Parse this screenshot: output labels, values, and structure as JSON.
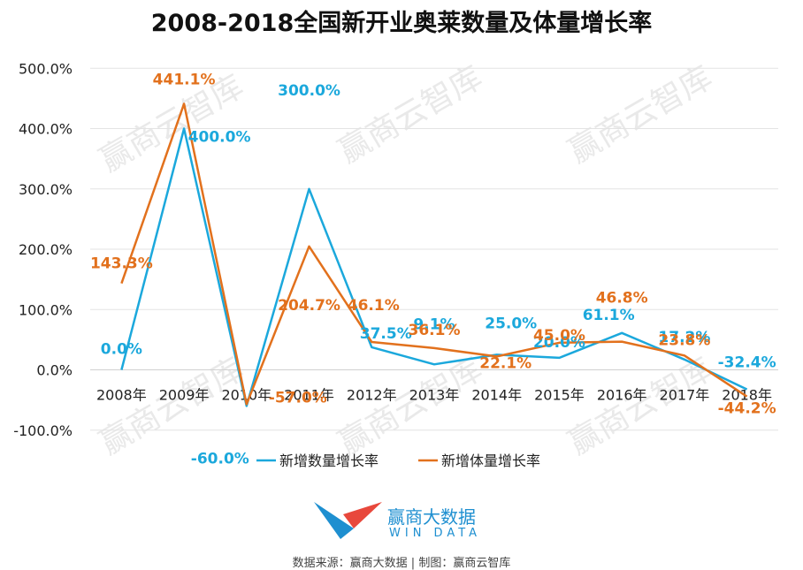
{
  "chart_data": {
    "type": "line",
    "title": "2008-2018全国新开业奥莱数量及体量增长率",
    "categories": [
      "2008年",
      "2009年",
      "2010年",
      "2011年",
      "2012年",
      "2013年",
      "2014年",
      "2015年",
      "2016年",
      "2017年",
      "2018年"
    ],
    "series": [
      {
        "name": "新增数量增长率",
        "color": "#1ba8dc",
        "values": [
          0.0,
          400.0,
          -60.0,
          300.0,
          37.5,
          9.1,
          25.0,
          20.0,
          61.1,
          17.2,
          -32.4
        ],
        "labels": [
          "0.0%",
          "400.0%",
          "-60.0%",
          "300.0%",
          "37.5%",
          "9.1%",
          "25.0%",
          "20.0%",
          "61.1%",
          "17.2%",
          "-32.4%"
        ]
      },
      {
        "name": "新增体量增长率",
        "color": "#e2711d",
        "values": [
          143.3,
          441.1,
          -57.0,
          204.7,
          46.1,
          36.1,
          22.1,
          45.0,
          46.8,
          23.8,
          -44.2
        ],
        "labels": [
          "143.3%",
          "441.1%",
          "-57.0%",
          "204.7%",
          "46.1%",
          "36.1%",
          "22.1%",
          "45.0%",
          "46.8%",
          "23.8%",
          "-44.2%"
        ]
      }
    ],
    "yticks": [
      500,
      400,
      300,
      200,
      100,
      0,
      -100
    ],
    "ytick_labels": [
      "500.0%",
      "400.0%",
      "300.0%",
      "200.0%",
      "100.0%",
      "0.0%",
      "-100.0%"
    ],
    "ylim": [
      -100,
      500
    ],
    "grid": true,
    "legend_position": "bottom"
  },
  "watermark": "赢商云智库",
  "logo": {
    "name": "赢商大数据",
    "sub": "WIN DATA"
  },
  "source": "数据来源：赢商大数据 | 制图：赢商云智库"
}
